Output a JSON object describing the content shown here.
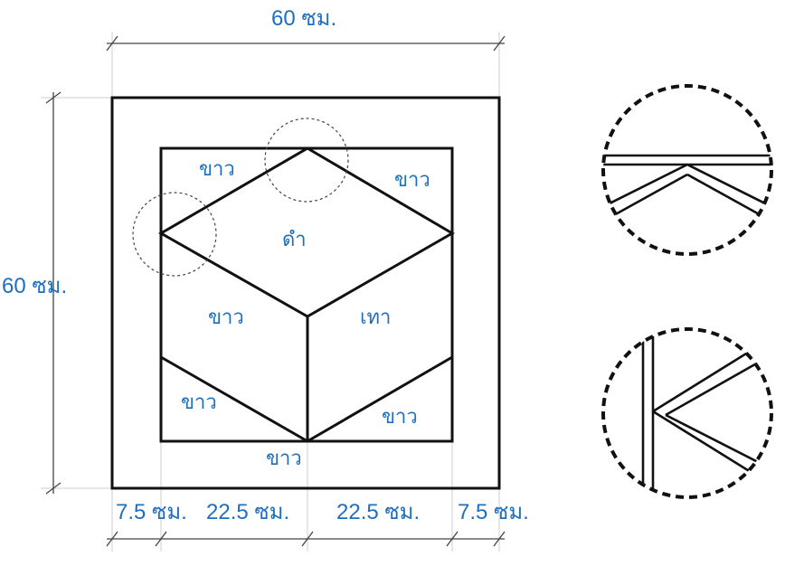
{
  "dimensions": {
    "top_width": "60 ซม.",
    "left_height": "60 ซม.",
    "bottom_segments": [
      "7.5 ซม.",
      "22.5 ซม.",
      "22.5 ซม.",
      "7.5 ซม."
    ]
  },
  "regions": {
    "top_left": "ขาว",
    "top_right": "ขาว",
    "top_face": "ดำ",
    "left_face": "ขาว",
    "right_face": "เทา",
    "bottom_left": "ขาว",
    "bottom_right": "ขาว",
    "bottom_center": "ขาว"
  },
  "colors": {
    "label": "#1f6fbf",
    "lines": "#111111"
  }
}
